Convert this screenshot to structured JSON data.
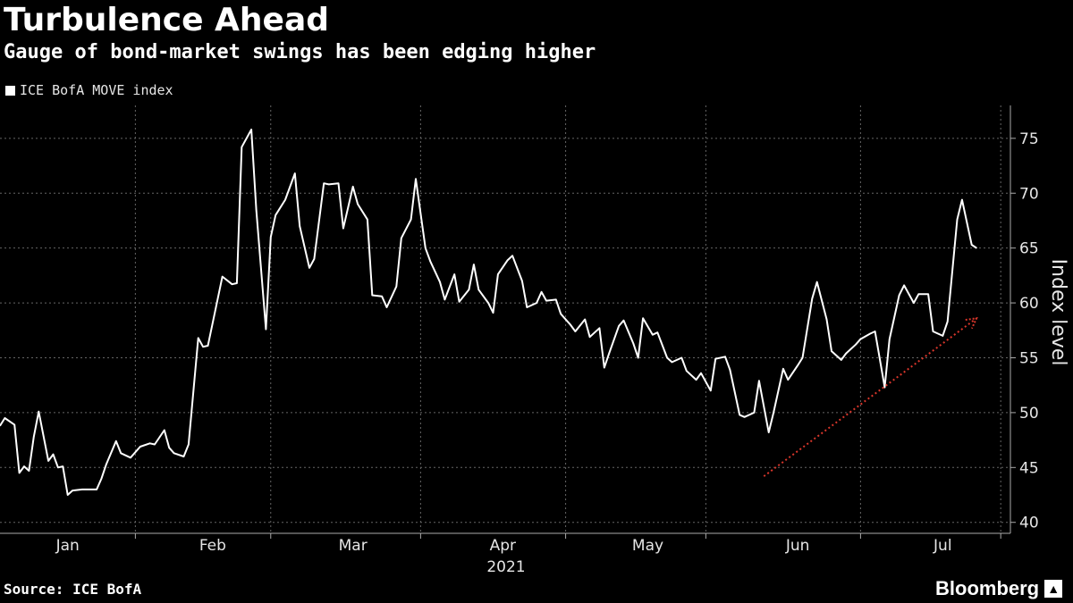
{
  "header": {
    "title": "Turbulence Ahead",
    "subtitle": "Gauge of bond-market swings has been edging higher"
  },
  "legend": {
    "label": "ICE BofA MOVE index",
    "color": "#ffffff"
  },
  "footer": {
    "source": "Source: ICE BofA",
    "brand": "Bloomberg",
    "brand_icon": "chart-bars-icon"
  },
  "colors": {
    "background": "#000000",
    "line": "#ffffff",
    "grid": "#666666",
    "trend_arrow": "#d9362b"
  },
  "chart_data": {
    "type": "line",
    "title": "Turbulence Ahead",
    "subtitle": "Gauge of bond-market swings has been edging higher",
    "ylabel": "Index level",
    "xlabel": "2021",
    "ylim": [
      39,
      78
    ],
    "yticks": [
      40,
      45,
      50,
      55,
      60,
      65,
      70,
      75
    ],
    "xlim": [
      "2021-01-01",
      "2021-07-29"
    ],
    "month_ticks": [
      {
        "label": "Jan",
        "date": "2021-01-15"
      },
      {
        "label": "Feb",
        "date": "2021-02-14"
      },
      {
        "label": "Mar",
        "date": "2021-03-15"
      },
      {
        "label": "Apr",
        "date": "2021-04-15"
      },
      {
        "label": "May",
        "date": "2021-05-15"
      },
      {
        "label": "Jun",
        "date": "2021-06-15"
      },
      {
        "label": "Jul",
        "date": "2021-07-15"
      }
    ],
    "gridlines_x": [
      "2021-01-29",
      "2021-02-26",
      "2021-03-29",
      "2021-04-28",
      "2021-05-27",
      "2021-06-28",
      "2021-07-27"
    ],
    "grid": true,
    "legend_position": "top-left",
    "series": [
      {
        "name": "ICE BofA MOVE index",
        "points": [
          [
            "2021-01-01",
            48.8
          ],
          [
            "2021-01-02",
            49.5
          ],
          [
            "2021-01-04",
            48.9
          ],
          [
            "2021-01-05",
            44.5
          ],
          [
            "2021-01-06",
            45.1
          ],
          [
            "2021-01-07",
            44.7
          ],
          [
            "2021-01-08",
            47.8
          ],
          [
            "2021-01-09",
            50.1
          ],
          [
            "2021-01-11",
            45.6
          ],
          [
            "2021-01-12",
            46.2
          ],
          [
            "2021-01-13",
            45.0
          ],
          [
            "2021-01-14",
            45.1
          ],
          [
            "2021-01-15",
            42.5
          ],
          [
            "2021-01-16",
            42.9
          ],
          [
            "2021-01-18",
            43.0
          ],
          [
            "2021-01-21",
            43.0
          ],
          [
            "2021-01-22",
            44.0
          ],
          [
            "2021-01-23",
            45.3
          ],
          [
            "2021-01-25",
            47.4
          ],
          [
            "2021-01-26",
            46.3
          ],
          [
            "2021-01-28",
            45.9
          ],
          [
            "2021-01-30",
            46.9
          ],
          [
            "2021-02-01",
            47.2
          ],
          [
            "2021-02-02",
            47.1
          ],
          [
            "2021-02-04",
            48.4
          ],
          [
            "2021-02-05",
            46.8
          ],
          [
            "2021-02-06",
            46.3
          ],
          [
            "2021-02-08",
            46.0
          ],
          [
            "2021-02-09",
            47.1
          ],
          [
            "2021-02-11",
            56.8
          ],
          [
            "2021-02-12",
            56.0
          ],
          [
            "2021-02-13",
            56.1
          ],
          [
            "2021-02-15",
            60.3
          ],
          [
            "2021-02-16",
            62.4
          ],
          [
            "2021-02-18",
            61.7
          ],
          [
            "2021-02-19",
            61.8
          ],
          [
            "2021-02-20",
            74.2
          ],
          [
            "2021-02-22",
            75.8
          ],
          [
            "2021-02-23",
            68.5
          ],
          [
            "2021-02-25",
            57.6
          ],
          [
            "2021-02-26",
            66.0
          ],
          [
            "2021-02-27",
            68.0
          ],
          [
            "2021-03-01",
            69.4
          ],
          [
            "2021-03-03",
            71.8
          ],
          [
            "2021-03-04",
            67.0
          ],
          [
            "2021-03-06",
            63.2
          ],
          [
            "2021-03-07",
            64.0
          ],
          [
            "2021-03-09",
            70.9
          ],
          [
            "2021-03-10",
            70.8
          ],
          [
            "2021-03-12",
            70.9
          ],
          [
            "2021-03-13",
            66.8
          ],
          [
            "2021-03-15",
            70.6
          ],
          [
            "2021-03-16",
            69.0
          ],
          [
            "2021-03-18",
            67.6
          ],
          [
            "2021-03-19",
            60.7
          ],
          [
            "2021-03-21",
            60.6
          ],
          [
            "2021-03-22",
            59.6
          ],
          [
            "2021-03-24",
            61.5
          ],
          [
            "2021-03-25",
            65.9
          ],
          [
            "2021-03-27",
            67.6
          ],
          [
            "2021-03-28",
            71.3
          ],
          [
            "2021-03-30",
            65.0
          ],
          [
            "2021-03-31",
            63.8
          ],
          [
            "2021-04-02",
            61.9
          ],
          [
            "2021-04-03",
            60.3
          ],
          [
            "2021-04-05",
            62.6
          ],
          [
            "2021-04-06",
            60.1
          ],
          [
            "2021-04-08",
            61.2
          ],
          [
            "2021-04-09",
            63.5
          ],
          [
            "2021-04-10",
            61.2
          ],
          [
            "2021-04-12",
            60.0
          ],
          [
            "2021-04-13",
            59.1
          ],
          [
            "2021-04-14",
            62.6
          ],
          [
            "2021-04-16",
            63.9
          ],
          [
            "2021-04-17",
            64.3
          ],
          [
            "2021-04-19",
            62.0
          ],
          [
            "2021-04-20",
            59.6
          ],
          [
            "2021-04-22",
            60.0
          ],
          [
            "2021-04-23",
            61.0
          ],
          [
            "2021-04-24",
            60.2
          ],
          [
            "2021-04-26",
            60.3
          ],
          [
            "2021-04-27",
            59.0
          ],
          [
            "2021-04-29",
            58.0
          ],
          [
            "2021-04-30",
            57.4
          ],
          [
            "2021-05-02",
            58.5
          ],
          [
            "2021-05-03",
            56.9
          ],
          [
            "2021-05-05",
            57.7
          ],
          [
            "2021-05-06",
            54.1
          ],
          [
            "2021-05-07",
            55.4
          ],
          [
            "2021-05-09",
            57.9
          ],
          [
            "2021-05-10",
            58.4
          ],
          [
            "2021-05-12",
            56.3
          ],
          [
            "2021-05-13",
            55.0
          ],
          [
            "2021-05-14",
            58.6
          ],
          [
            "2021-05-16",
            57.1
          ],
          [
            "2021-05-17",
            57.3
          ],
          [
            "2021-05-19",
            55.0
          ],
          [
            "2021-05-20",
            54.6
          ],
          [
            "2021-05-22",
            55.0
          ],
          [
            "2021-05-23",
            53.8
          ],
          [
            "2021-05-25",
            53.0
          ],
          [
            "2021-05-26",
            53.6
          ],
          [
            "2021-05-28",
            52.0
          ],
          [
            "2021-05-29",
            54.9
          ],
          [
            "2021-05-31",
            55.1
          ],
          [
            "2021-06-01",
            53.9
          ],
          [
            "2021-06-03",
            49.8
          ],
          [
            "2021-06-04",
            49.6
          ],
          [
            "2021-06-06",
            50.0
          ],
          [
            "2021-06-07",
            52.9
          ],
          [
            "2021-06-09",
            48.2
          ],
          [
            "2021-06-10",
            50.0
          ],
          [
            "2021-06-12",
            54.0
          ],
          [
            "2021-06-13",
            53.0
          ],
          [
            "2021-06-15",
            54.3
          ],
          [
            "2021-06-16",
            55.0
          ],
          [
            "2021-06-18",
            60.4
          ],
          [
            "2021-06-19",
            61.9
          ],
          [
            "2021-06-21",
            58.5
          ],
          [
            "2021-06-22",
            55.6
          ],
          [
            "2021-06-24",
            54.8
          ],
          [
            "2021-06-25",
            55.4
          ],
          [
            "2021-06-27",
            56.2
          ],
          [
            "2021-06-28",
            56.7
          ],
          [
            "2021-06-30",
            57.2
          ],
          [
            "2021-07-01",
            57.4
          ],
          [
            "2021-07-03",
            52.3
          ],
          [
            "2021-07-04",
            56.7
          ],
          [
            "2021-07-06",
            60.7
          ],
          [
            "2021-07-07",
            61.6
          ],
          [
            "2021-07-09",
            60.0
          ],
          [
            "2021-07-10",
            60.8
          ],
          [
            "2021-07-12",
            60.8
          ],
          [
            "2021-07-13",
            57.4
          ],
          [
            "2021-07-15",
            57.0
          ],
          [
            "2021-07-16",
            58.3
          ],
          [
            "2021-07-18",
            67.6
          ],
          [
            "2021-07-19",
            69.4
          ],
          [
            "2021-07-21",
            65.3
          ],
          [
            "2021-07-22",
            65.0
          ]
        ]
      }
    ],
    "annotations": [
      {
        "type": "trend-arrow",
        "style": "dotted",
        "color": "#d9362b",
        "from": [
          "2021-06-08",
          44.2
        ],
        "to": [
          "2021-07-22",
          58.6
        ]
      }
    ]
  }
}
